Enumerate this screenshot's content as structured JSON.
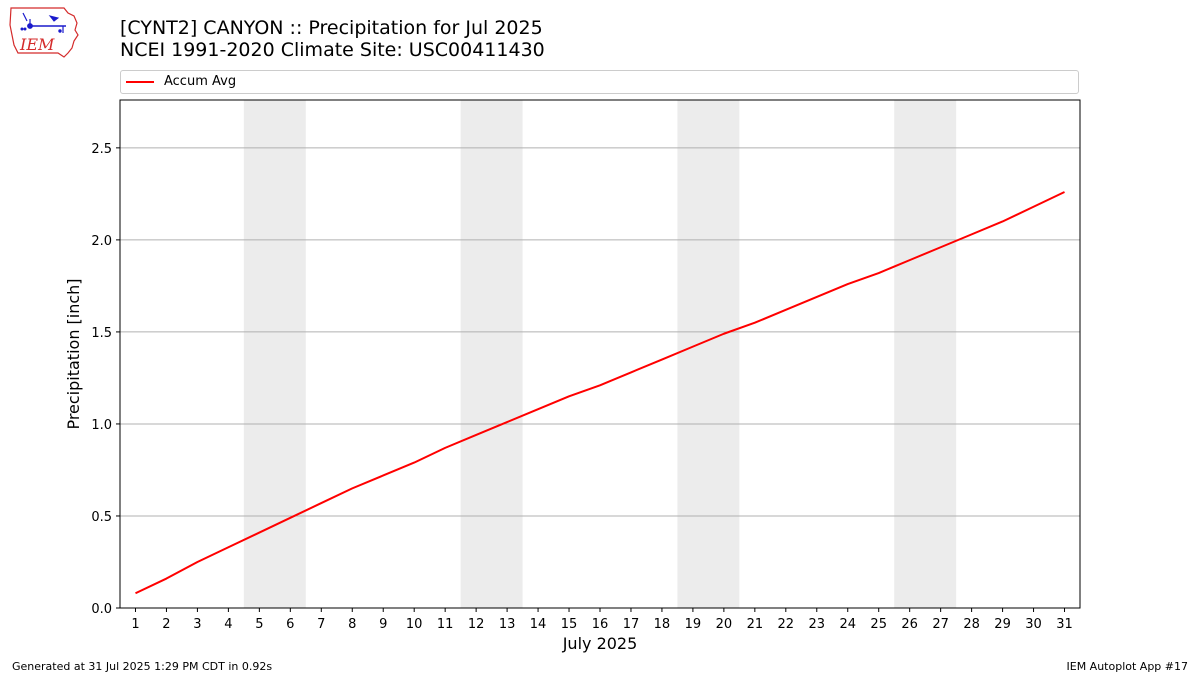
{
  "header": {
    "logo_text": "IEM",
    "title_line1": "[CYNT2] CANYON :: Precipitation for Jul 2025",
    "title_line2": "NCEI 1991-2020 Climate Site: USC00411430"
  },
  "footer": {
    "generated": "Generated at 31 Jul 2025 1:29 PM CDT in 0.92s",
    "app": "IEM Autoplot App #17"
  },
  "colors": {
    "line": "#ff0000",
    "weekend_shade": "#ececec",
    "grid": "#b0b0b0",
    "logo": "#d42b2b"
  },
  "chart_data": {
    "type": "line",
    "xlabel": "July 2025",
    "ylabel": "Precipitation [inch]",
    "x": [
      1,
      2,
      3,
      4,
      5,
      6,
      7,
      8,
      9,
      10,
      11,
      12,
      13,
      14,
      15,
      16,
      17,
      18,
      19,
      20,
      21,
      22,
      23,
      24,
      25,
      26,
      27,
      28,
      29,
      30,
      31
    ],
    "xtick_labels": [
      "1",
      "2",
      "3",
      "4",
      "5",
      "6",
      "7",
      "8",
      "9",
      "10",
      "11",
      "12",
      "13",
      "14",
      "15",
      "16",
      "17",
      "18",
      "19",
      "20",
      "21",
      "22",
      "23",
      "24",
      "25",
      "26",
      "27",
      "28",
      "29",
      "30",
      "31"
    ],
    "yticks": [
      0.0,
      0.5,
      1.0,
      1.5,
      2.0,
      2.5
    ],
    "ytick_labels": [
      "0.0",
      "0.5",
      "1.0",
      "1.5",
      "2.0",
      "2.5"
    ],
    "xlim": [
      0.5,
      31.5
    ],
    "ylim": [
      0,
      2.76
    ],
    "grid": "horizontal",
    "legend_position": "top",
    "shaded_weekends": [
      [
        5,
        6
      ],
      [
        12,
        13
      ],
      [
        19,
        20
      ],
      [
        26,
        27
      ]
    ],
    "series": [
      {
        "name": "Accum Avg",
        "values": [
          0.08,
          0.16,
          0.25,
          0.33,
          0.41,
          0.49,
          0.57,
          0.65,
          0.72,
          0.79,
          0.87,
          0.94,
          1.01,
          1.08,
          1.15,
          1.21,
          1.28,
          1.35,
          1.42,
          1.49,
          1.55,
          1.62,
          1.69,
          1.76,
          1.82,
          1.89,
          1.96,
          2.03,
          2.1,
          2.18,
          2.26
        ]
      }
    ]
  }
}
